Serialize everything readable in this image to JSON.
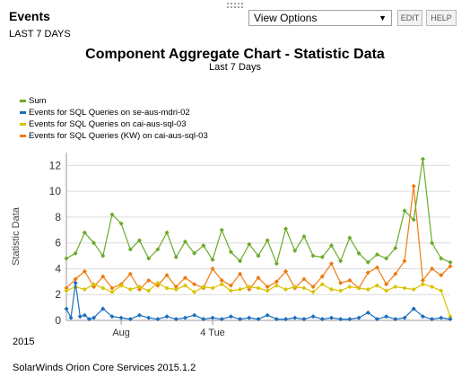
{
  "resource": {
    "title": "Events",
    "subtitle": "LAST 7 DAYS",
    "view_options_label": "View Options",
    "edit_label": "EDIT",
    "help_label": "HELP"
  },
  "footer": {
    "year": "2015",
    "product": "SolarWinds Orion Core Services 2015.1.2"
  },
  "colors": {
    "sum": "#6aaa2a",
    "mdri02": "#1a6fbf",
    "sql03": "#d9c300",
    "sql03kw": "#f07a10",
    "grid": "#dcdcdc"
  },
  "chart_data": {
    "type": "line",
    "title": "Component Aggregate Chart - Statistic Data",
    "subtitle": "Last 7 Days",
    "ylabel": "Statistic Data",
    "xlabel": "",
    "ylim": [
      0,
      13
    ],
    "yticks": [
      0,
      2,
      4,
      6,
      8,
      10,
      12
    ],
    "xlim": [
      0,
      168
    ],
    "x_unit": "hours",
    "xticks": [
      {
        "x": 24,
        "label": "Aug"
      },
      {
        "x": 64,
        "label": "4 Tue"
      }
    ],
    "grid": true,
    "legend_position": "top-left",
    "series": [
      {
        "name": "Sum",
        "color_key": "sum",
        "x": [
          0,
          4,
          8,
          12,
          16,
          20,
          24,
          28,
          32,
          36,
          40,
          44,
          48,
          52,
          56,
          60,
          64,
          68,
          72,
          76,
          80,
          84,
          88,
          92,
          96,
          100,
          104,
          108,
          112,
          116,
          120,
          124,
          128,
          132,
          136,
          140,
          144,
          148,
          152,
          156,
          160,
          164,
          168
        ],
        "values": [
          4.8,
          5.2,
          6.8,
          6.0,
          5.0,
          8.2,
          7.5,
          5.5,
          6.2,
          4.8,
          5.5,
          6.8,
          4.9,
          6.1,
          5.2,
          5.8,
          4.7,
          7.0,
          5.3,
          4.6,
          5.9,
          5.0,
          6.2,
          4.4,
          7.1,
          5.4,
          6.5,
          5.0,
          4.9,
          5.8,
          4.6,
          6.4,
          5.2,
          4.5,
          5.1,
          4.8,
          5.6,
          8.5,
          7.8,
          12.5,
          6.0,
          4.8,
          4.5
        ]
      },
      {
        "name": "Events for SQL Queries on se-aus-mdri-02",
        "color_key": "mdri02",
        "x": [
          0,
          2,
          4,
          6,
          8,
          10,
          12,
          16,
          20,
          24,
          28,
          32,
          36,
          40,
          44,
          48,
          52,
          56,
          60,
          64,
          68,
          72,
          76,
          80,
          84,
          88,
          92,
          96,
          100,
          104,
          108,
          112,
          116,
          120,
          124,
          128,
          132,
          136,
          140,
          144,
          148,
          152,
          156,
          160,
          164,
          168
        ],
        "values": [
          0.9,
          0.2,
          2.9,
          0.3,
          0.4,
          0.1,
          0.2,
          0.9,
          0.3,
          0.2,
          0.1,
          0.4,
          0.2,
          0.1,
          0.3,
          0.1,
          0.2,
          0.4,
          0.1,
          0.2,
          0.1,
          0.3,
          0.1,
          0.2,
          0.1,
          0.4,
          0.1,
          0.1,
          0.2,
          0.1,
          0.3,
          0.1,
          0.2,
          0.1,
          0.1,
          0.2,
          0.6,
          0.1,
          0.3,
          0.1,
          0.2,
          0.9,
          0.3,
          0.1,
          0.2,
          0.1
        ]
      },
      {
        "name": "Events for SQL Queries on cai-aus-sql-03",
        "color_key": "sql03",
        "x": [
          0,
          4,
          8,
          12,
          16,
          20,
          24,
          28,
          32,
          36,
          40,
          44,
          48,
          52,
          56,
          60,
          64,
          68,
          72,
          76,
          80,
          84,
          88,
          92,
          96,
          100,
          104,
          108,
          112,
          116,
          120,
          124,
          128,
          132,
          136,
          140,
          144,
          148,
          152,
          156,
          160,
          164,
          168
        ],
        "values": [
          2.3,
          2.6,
          2.4,
          2.8,
          2.5,
          2.2,
          2.7,
          2.4,
          2.6,
          2.3,
          2.9,
          2.5,
          2.4,
          2.7,
          2.2,
          2.6,
          2.5,
          2.8,
          2.3,
          2.4,
          2.6,
          2.5,
          2.3,
          2.7,
          2.4,
          2.6,
          2.5,
          2.2,
          2.8,
          2.4,
          2.3,
          2.6,
          2.5,
          2.4,
          2.7,
          2.3,
          2.6,
          2.5,
          2.4,
          2.8,
          2.6,
          2.3,
          0.3
        ]
      },
      {
        "name": "Events for SQL Queries (KW) on cai-aus-sql-03",
        "color_key": "sql03kw",
        "x": [
          0,
          4,
          8,
          12,
          16,
          20,
          24,
          28,
          32,
          36,
          40,
          44,
          48,
          52,
          56,
          60,
          64,
          68,
          72,
          76,
          80,
          84,
          88,
          92,
          96,
          100,
          104,
          108,
          112,
          116,
          120,
          124,
          128,
          132,
          136,
          140,
          144,
          148,
          152,
          156,
          160,
          164,
          168
        ],
        "values": [
          2.5,
          3.2,
          3.8,
          2.6,
          3.4,
          2.5,
          2.8,
          3.6,
          2.4,
          3.1,
          2.7,
          3.5,
          2.6,
          3.3,
          2.8,
          2.5,
          4.0,
          3.1,
          2.7,
          3.6,
          2.4,
          3.3,
          2.6,
          3.0,
          3.8,
          2.5,
          3.2,
          2.6,
          3.4,
          4.4,
          2.9,
          3.1,
          2.5,
          3.7,
          4.1,
          2.8,
          3.6,
          4.6,
          10.4,
          3.1,
          4.0,
          3.5,
          4.2
        ]
      }
    ]
  }
}
